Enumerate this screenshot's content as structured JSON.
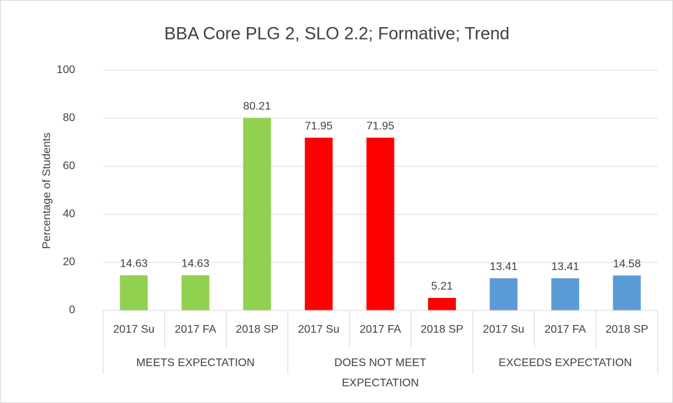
{
  "chart_data": {
    "type": "bar",
    "title": "BBA Core PLG 2, SLO 2.2; Formative; Trend",
    "y_label": "Percentage of Students",
    "categories": [
      "2017 Su",
      "2017 FA",
      "2018 SP"
    ],
    "series": [
      {
        "name": "MEETS EXPECTATION",
        "color": "#92d050",
        "values": [
          14.63,
          14.63,
          80.21
        ]
      },
      {
        "name": "DOES NOT MEET EXPECTATION",
        "color": "#ff0000",
        "values": [
          71.95,
          71.95,
          5.21
        ]
      },
      {
        "name": "EXCEEDS EXPECTATION",
        "color": "#5b9bd5",
        "values": [
          13.41,
          13.41,
          14.58
        ]
      }
    ],
    "ylim": [
      0,
      100
    ],
    "yticks": [
      0,
      20,
      40,
      60,
      80,
      100
    ],
    "grid": true
  }
}
